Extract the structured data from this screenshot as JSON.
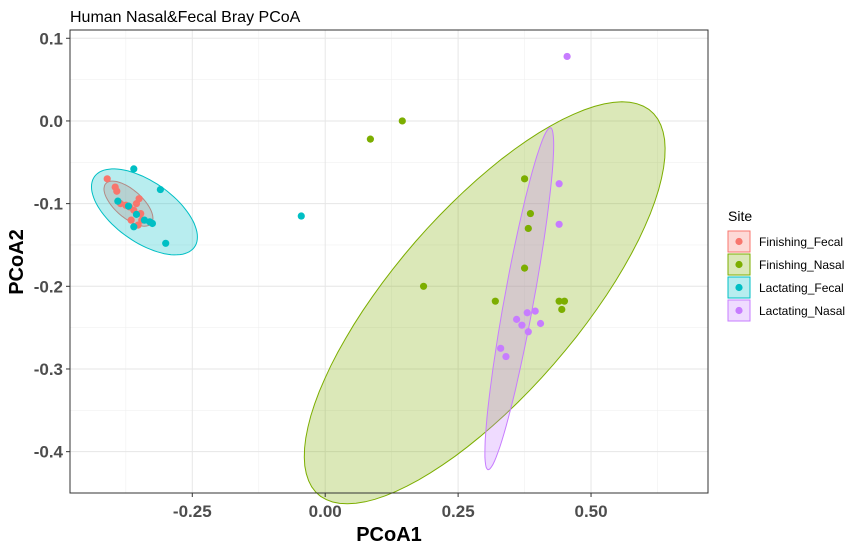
{
  "chart_data": {
    "type": "scatter",
    "title": "Human Nasal&Fecal Bray PCoA",
    "xlabel": "PCoA1",
    "ylabel": "PCoA2",
    "xlim": [
      -0.48,
      0.72
    ],
    "ylim": [
      -0.45,
      0.11
    ],
    "x_ticks": [
      -0.25,
      0.0,
      0.25,
      0.5
    ],
    "x_tick_labels": [
      "-0.25",
      "0.00",
      "0.25",
      "0.50"
    ],
    "y_ticks": [
      0.1,
      0.0,
      -0.1,
      -0.2,
      -0.3,
      -0.4
    ],
    "y_tick_labels": [
      "0.1",
      "0.0",
      "-0.1",
      "-0.2",
      "-0.3",
      "-0.4"
    ],
    "grid": true,
    "legend": {
      "title": "Site",
      "position": "right"
    },
    "series": [
      {
        "name": "Finishing_Fecal",
        "color": "#F8766D",
        "points": [
          [
            -0.41,
            -0.07
          ],
          [
            -0.395,
            -0.08
          ],
          [
            -0.392,
            -0.085
          ],
          [
            -0.385,
            -0.1
          ],
          [
            -0.375,
            -0.102
          ],
          [
            -0.368,
            -0.104
          ],
          [
            -0.36,
            -0.108
          ],
          [
            -0.355,
            -0.1
          ],
          [
            -0.35,
            -0.094
          ],
          [
            -0.347,
            -0.112
          ],
          [
            -0.345,
            -0.12
          ],
          [
            -0.352,
            -0.126
          ],
          [
            -0.365,
            -0.12
          ]
        ],
        "ellipse": {
          "cx": -0.37,
          "cy": -0.1,
          "rx": 0.05,
          "ry": 0.019,
          "angle_deg": -25
        }
      },
      {
        "name": "Finishing_Nasal",
        "color": "#7CAE00",
        "points": [
          [
            0.085,
            -0.022
          ],
          [
            0.145,
            0.0
          ],
          [
            0.185,
            -0.2
          ],
          [
            0.32,
            -0.218
          ],
          [
            0.375,
            -0.07
          ],
          [
            0.375,
            -0.178
          ],
          [
            0.382,
            -0.13
          ],
          [
            0.386,
            -0.112
          ],
          [
            0.44,
            -0.218
          ],
          [
            0.45,
            -0.218
          ],
          [
            0.445,
            -0.228
          ]
        ],
        "ellipse": {
          "cx": 0.3,
          "cy": -0.22,
          "rx": 0.395,
          "ry": 0.135,
          "angle_deg": 33
        }
      },
      {
        "name": "Lactating_Fecal",
        "color": "#00BFC4",
        "points": [
          [
            -0.045,
            -0.115
          ],
          [
            -0.36,
            -0.058
          ],
          [
            -0.31,
            -0.083
          ],
          [
            -0.39,
            -0.097
          ],
          [
            -0.37,
            -0.103
          ],
          [
            -0.355,
            -0.113
          ],
          [
            -0.34,
            -0.12
          ],
          [
            -0.33,
            -0.122
          ],
          [
            -0.325,
            -0.124
          ],
          [
            -0.36,
            -0.128
          ],
          [
            -0.3,
            -0.148
          ]
        ],
        "ellipse": {
          "cx": -0.34,
          "cy": -0.11,
          "rx": 0.105,
          "ry": 0.04,
          "angle_deg": -20
        }
      },
      {
        "name": "Lactating_Nasal",
        "color": "#C77CFF",
        "points": [
          [
            0.455,
            0.078
          ],
          [
            0.44,
            -0.076
          ],
          [
            0.44,
            -0.125
          ],
          [
            0.36,
            -0.24
          ],
          [
            0.37,
            -0.247
          ],
          [
            0.38,
            -0.232
          ],
          [
            0.395,
            -0.23
          ],
          [
            0.382,
            -0.255
          ],
          [
            0.405,
            -0.245
          ],
          [
            0.33,
            -0.275
          ],
          [
            0.34,
            -0.285
          ]
        ],
        "ellipse": {
          "cx": 0.365,
          "cy": -0.215,
          "rx": 0.215,
          "ry": 0.027,
          "angle_deg": 74
        }
      }
    ]
  }
}
